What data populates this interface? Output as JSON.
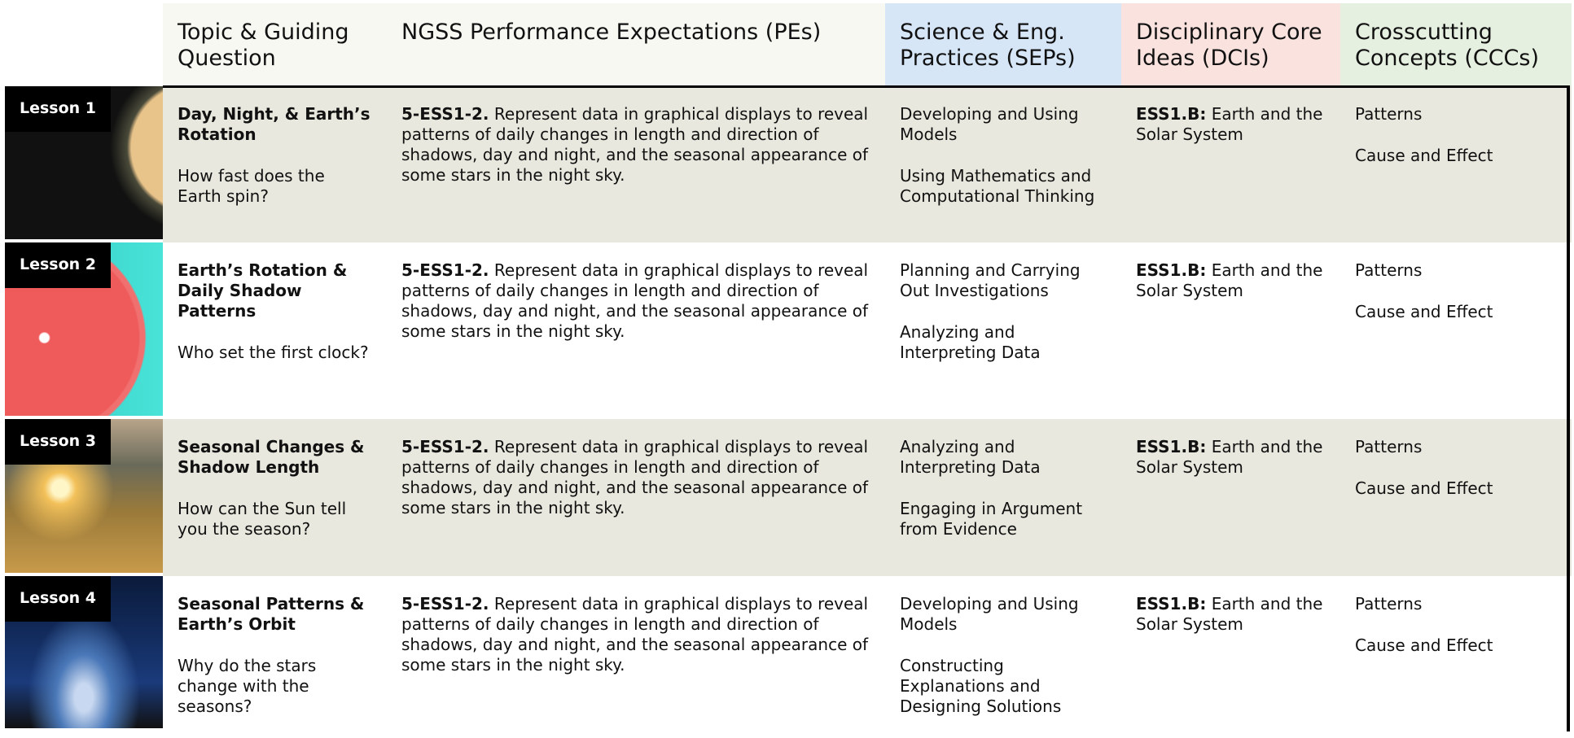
{
  "header": {
    "topic": "Topic & Guiding Question",
    "pes": "NGSS Performance Expectations (PEs)",
    "seps": "Science & Eng. Practices (SEPs)",
    "dcis": "Disciplinary Core Ideas (DCIs)",
    "cccs": "Crosscutting Concepts (CCCs)"
  },
  "rows": [
    {
      "lesson": "Lesson 1",
      "topic": "Day, Night, & Earth’s Rotation",
      "question": "How fast does the Earth spin?",
      "pe_code": "5-ESS1-2.",
      "pe_text": "Represent data in graphical displays to reveal patterns of daily changes in length and direction of shadows, day and night, and the seasonal appearance of some stars in the night sky.",
      "seps": [
        "Developing and Using Models",
        "Using Mathematics and Computational Thinking"
      ],
      "dci_code": "ESS1.B:",
      "dci_text": "Earth and the Solar System",
      "cccs": [
        "Patterns",
        "Cause and Effect"
      ]
    },
    {
      "lesson": "Lesson 2",
      "topic": "Earth’s Rotation & Daily Shadow Patterns",
      "question": "Who set the first clock?",
      "pe_code": "5-ESS1-2.",
      "pe_text": "Represent data in graphical displays to reveal patterns of daily changes in length and direction of shadows, day and night, and the seasonal appearance of some stars in the night sky.",
      "seps": [
        "Planning and Carrying Out Investigations",
        "Analyzing and Interpreting Data"
      ],
      "dci_code": "ESS1.B:",
      "dci_text": "Earth and the Solar System",
      "cccs": [
        "Patterns",
        "Cause and Effect"
      ]
    },
    {
      "lesson": "Lesson 3",
      "topic": "Seasonal Changes & Shadow Length",
      "question": "How can the Sun tell you the season?",
      "pe_code": "5-ESS1-2.",
      "pe_text": "Represent data in graphical displays to reveal patterns of daily changes in length and direction of shadows, day and night, and the seasonal appearance of some stars in the night sky.",
      "seps": [
        "Analyzing and Interpreting Data",
        "Engaging in Argument from Evidence"
      ],
      "dci_code": "ESS1.B:",
      "dci_text": "Earth and the Solar System",
      "cccs": [
        "Patterns",
        "Cause and Effect"
      ]
    },
    {
      "lesson": "Lesson 4",
      "topic": "Seasonal Patterns & Earth’s Orbit",
      "question": "Why do the stars change with the seasons?",
      "pe_code": "5-ESS1-2.",
      "pe_text": "Represent data in graphical displays to reveal patterns of daily changes in length and direction of shadows, day and night, and the seasonal appearance of some stars in the night sky.",
      "seps": [
        "Developing and Using Models",
        "Constructing Explanations and Designing Solutions"
      ],
      "dci_code": "ESS1.B:",
      "dci_text": "Earth and the Solar System",
      "cccs": [
        "Patterns",
        "Cause and Effect"
      ]
    }
  ]
}
